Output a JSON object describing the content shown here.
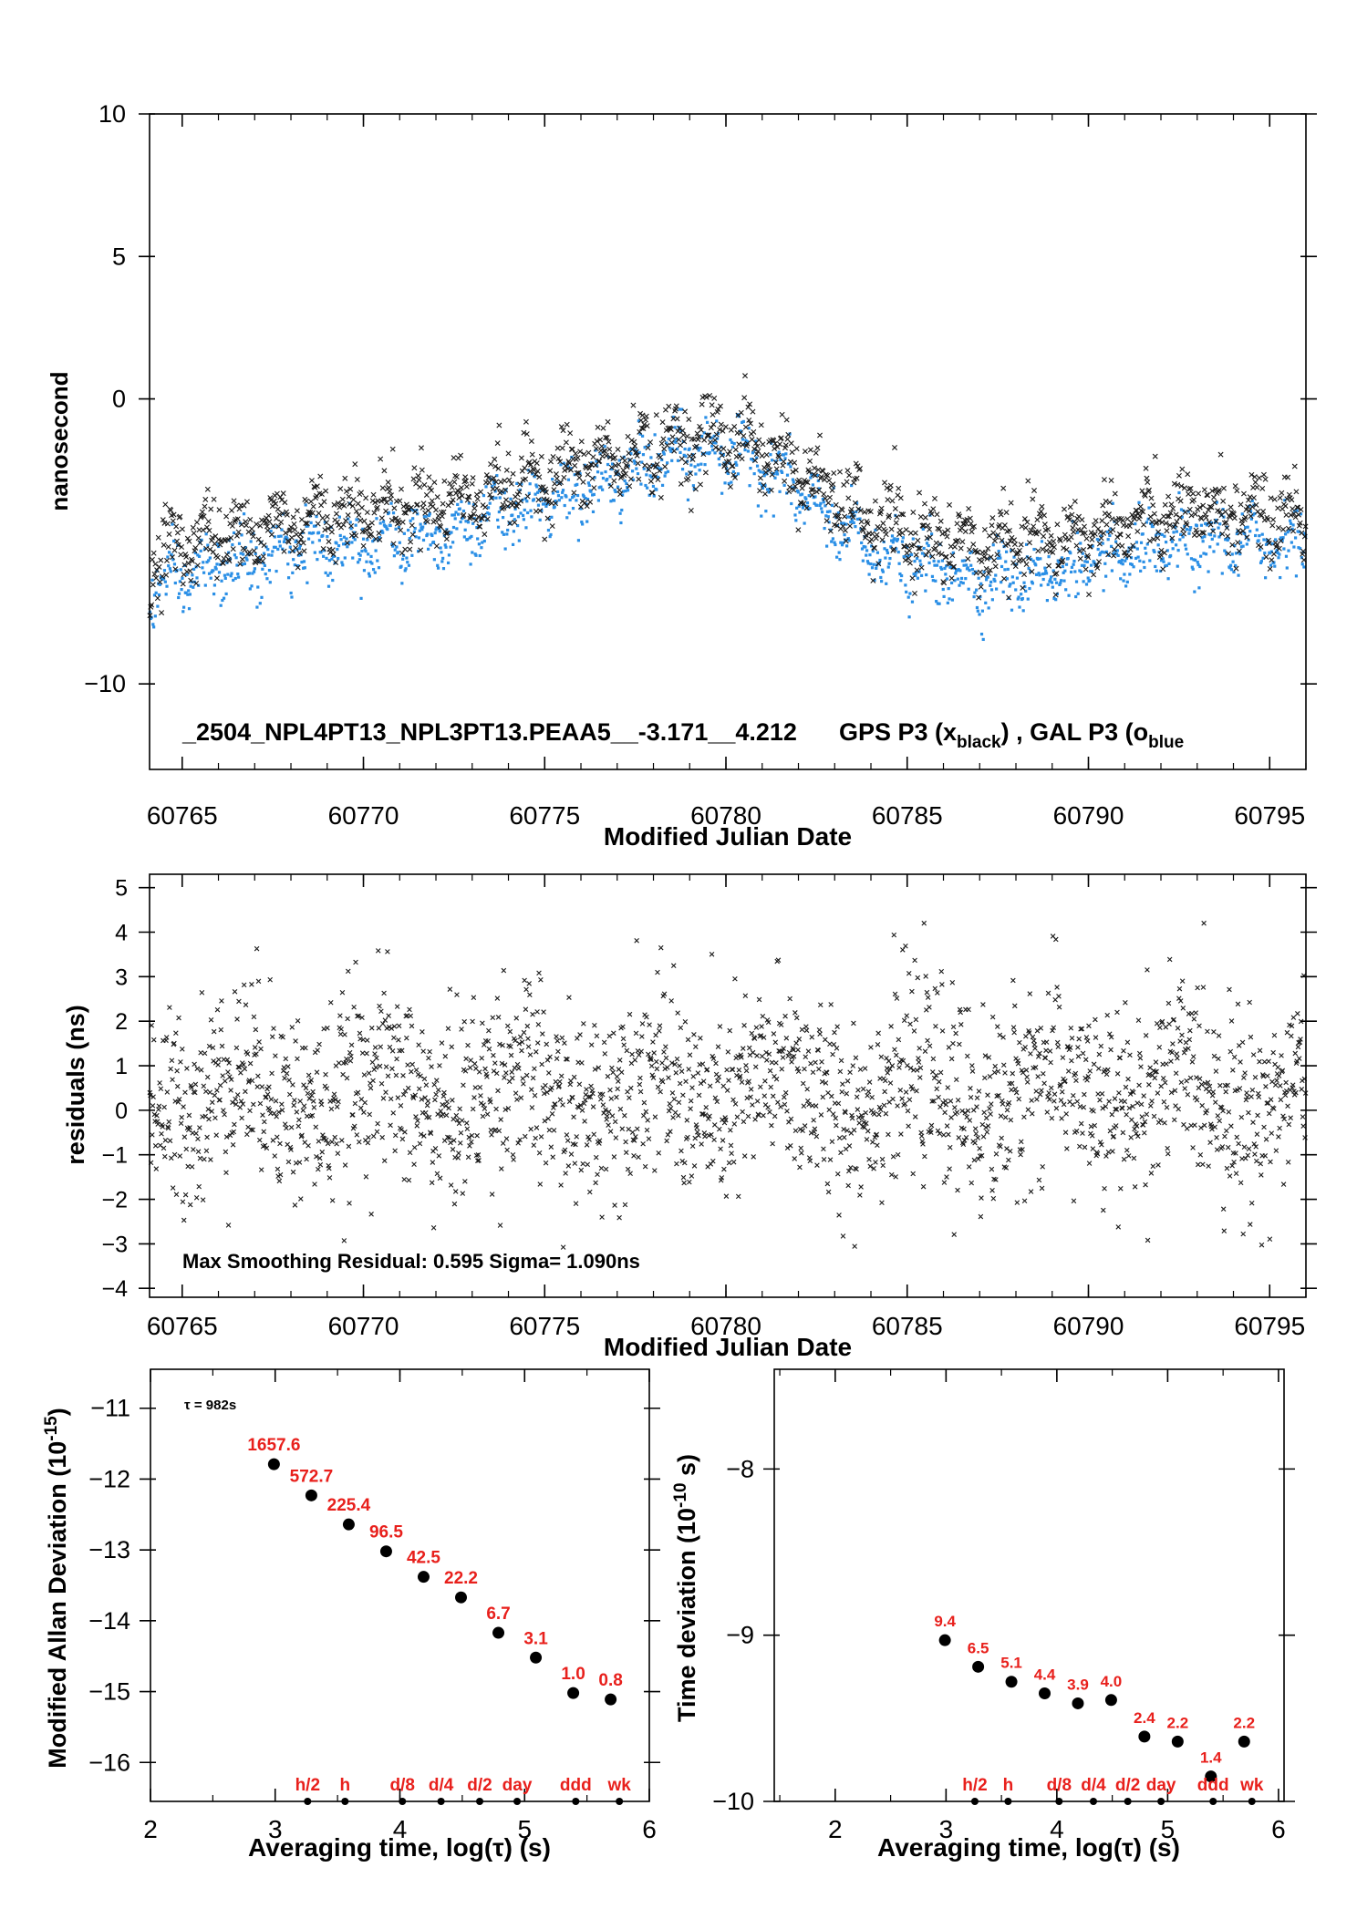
{
  "chart_data": [
    {
      "id": "top",
      "type": "scatter",
      "xlabel": "Modified Julian Date",
      "ylabel": "nanosecond",
      "xlim": [
        60764.1,
        60796.0
      ],
      "ylim": [
        -13,
        10
      ],
      "xticks": [
        "60765",
        "60770",
        "60775",
        "60780",
        "60785",
        "60790",
        "60795"
      ],
      "yticks": [
        "10",
        "5",
        "0",
        "−10"
      ],
      "annotation": "_2504_NPL4PT13_NPL3PT13.PEAA5__-3.171__4.212",
      "legend": {
        "gps": "GPS P3 (x",
        "gps_sub": "black",
        "sep": ") ,  GAL P3 (o",
        "gal_sub": "blue"
      },
      "colors": {
        "gps": "#1a1a1a",
        "gal": "#2a8fe6"
      },
      "series": [
        {
          "name": "GPS P3",
          "marker": "x",
          "color": "#1a1a1a",
          "trend_x": [
            60764.1,
            60765,
            60766,
            60767,
            60768,
            60769,
            60770,
            60771,
            60772,
            60773,
            60774,
            60775,
            60776,
            60777,
            60778,
            60779,
            60780,
            60781,
            60782,
            60783,
            60784,
            60785,
            60786,
            60787,
            60788,
            60789,
            60790,
            60791,
            60792,
            60793,
            60794,
            60795,
            60796
          ],
          "trend_y": [
            -5.8,
            -5.0,
            -4.8,
            -4.6,
            -4.3,
            -4.0,
            -3.9,
            -3.8,
            -3.6,
            -3.4,
            -3.0,
            -2.7,
            -2.4,
            -2.1,
            -1.7,
            -1.4,
            -1.3,
            -1.7,
            -2.5,
            -3.5,
            -4.3,
            -4.7,
            -5.0,
            -5.2,
            -5.1,
            -5.0,
            -4.8,
            -4.4,
            -4.2,
            -4.0,
            -4.0,
            -4.1,
            -4.2
          ]
        },
        {
          "name": "GAL P3",
          "marker": "o",
          "color": "#2a8fe6",
          "trend_x": [
            60764.1,
            60765,
            60766,
            60767,
            60768,
            60769,
            60770,
            60771,
            60772,
            60773,
            60774,
            60775,
            60776,
            60777,
            60778,
            60779,
            60780,
            60781,
            60782,
            60783,
            60784,
            60785,
            60786,
            60787,
            60788,
            60789,
            60790,
            60791,
            60792,
            60793,
            60794,
            60795,
            60796
          ],
          "trend_y": [
            -6.8,
            -6.3,
            -5.9,
            -5.7,
            -5.4,
            -5.1,
            -5.0,
            -4.9,
            -4.7,
            -4.4,
            -4.0,
            -3.6,
            -3.2,
            -2.8,
            -2.3,
            -1.9,
            -1.8,
            -2.3,
            -3.3,
            -4.4,
            -5.3,
            -5.8,
            -6.1,
            -6.3,
            -6.2,
            -6.1,
            -5.9,
            -5.5,
            -5.3,
            -5.1,
            -5.0,
            -5.0,
            -5.1
          ]
        }
      ]
    },
    {
      "id": "middle",
      "type": "scatter",
      "xlabel": "Modified Julian Date",
      "ylabel": "residuals (ns)",
      "xlim": [
        60764.1,
        60796.0
      ],
      "ylim": [
        -4.2,
        5.3
      ],
      "xticks": [
        "60765",
        "60770",
        "60775",
        "60780",
        "60785",
        "60790",
        "60795"
      ],
      "yticks": [
        "5",
        "4",
        "3",
        "2",
        "1",
        "0",
        "−1",
        "−2",
        "−3",
        "−4"
      ],
      "annotation": "Max Smoothing Residual: 0.595  Sigma= 1.090ns",
      "series": [
        {
          "marker": "x",
          "color": "#1a1a1a",
          "mean": 0.4,
          "sigma": 1.09
        }
      ]
    },
    {
      "id": "mdev",
      "type": "scatter",
      "xlabel": "Averaging time, log(τ) (s)",
      "ylabel": "Modified Allan Deviation (10",
      "ylabel_sup": "-15",
      "ylabel_end": ")",
      "xlim": [
        2,
        6
      ],
      "ylim": [
        -16.55,
        -10.45
      ],
      "xticks": [
        "2",
        "3",
        "4",
        "5",
        "6"
      ],
      "yticks": [
        "−11",
        "−12",
        "−13",
        "−14",
        "−15",
        "−16"
      ],
      "note": "τ = 982s",
      "x": [
        2.99,
        3.29,
        3.59,
        3.89,
        4.19,
        4.49,
        4.79,
        5.09,
        5.39,
        5.69
      ],
      "y": [
        -11.79,
        -12.23,
        -12.64,
        -13.02,
        -13.38,
        -13.67,
        -14.17,
        -14.52,
        -15.02,
        -15.11
      ],
      "labels": [
        "1657.6",
        "572.7",
        "225.4",
        "96.5",
        "42.5",
        "22.2",
        "6.7",
        "3.1",
        "1.0",
        "0.8"
      ],
      "markers_x": [
        3.26,
        3.56,
        4.02,
        4.33,
        4.64,
        4.94,
        5.41,
        5.76
      ],
      "markers": [
        "h/2",
        "h",
        "d/8",
        "d/4",
        "d/2",
        "day",
        "ddd",
        "wk"
      ]
    },
    {
      "id": "tdev",
      "type": "scatter",
      "xlabel": "Averaging time, log(τ) (s)",
      "ylabel": "Time deviation (10",
      "ylabel_sup": "-10",
      "ylabel_end": " s)",
      "xlim": [
        1.45,
        6.05
      ],
      "ylim": [
        -10.0,
        -7.4
      ],
      "xticks": [
        "2",
        "3",
        "4",
        "5",
        "6"
      ],
      "yticks": [
        "−8",
        "−9",
        "−10"
      ],
      "x": [
        2.99,
        3.29,
        3.59,
        3.89,
        4.19,
        4.49,
        4.79,
        5.09,
        5.39,
        5.69
      ],
      "y": [
        -9.03,
        -9.19,
        -9.28,
        -9.35,
        -9.41,
        -9.39,
        -9.61,
        -9.64,
        -9.85,
        -9.64
      ],
      "labels": [
        "9.4",
        "6.5",
        "5.1",
        "4.4",
        "3.9",
        "4.0",
        "2.4",
        "2.2",
        "1.4",
        "2.2"
      ],
      "markers_x": [
        3.26,
        3.56,
        4.02,
        4.33,
        4.64,
        4.94,
        5.41,
        5.76
      ],
      "markers": [
        "h/2",
        "h",
        "d/8",
        "d/4",
        "d/2",
        "day",
        "ddd",
        "wk"
      ]
    }
  ]
}
